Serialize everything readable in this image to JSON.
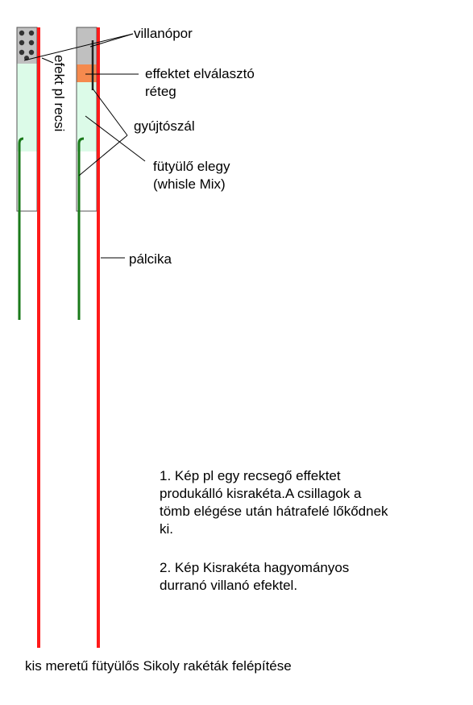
{
  "labels": {
    "villanopor": "villanópor",
    "separator_line1": "effektet elválasztó",
    "separator_line2": "réteg",
    "fuse": "gyújtószál",
    "mix_line1": "fütyülő elegy",
    "mix_line2": "(whisle Mix)",
    "stick": "pálcika",
    "vertical_effect": "efekt pl recsi"
  },
  "notes": {
    "note1": "1. Kép pl egy recsegő effektet\nprodukálló kisrakéta.A csillagok a\ntömb elégése után hátrafelé lőkődnek\nki.",
    "note2": "2. Kép Kisrakéta hagyományos\ndurranó villanó efektel."
  },
  "caption": "kis meretű fütyülős Sikoly rakéták felépítése",
  "colors": {
    "stick": "#ff1a1a",
    "fuse": "#1a7a1a",
    "whistle_mix": "#dcfbe8",
    "flash_powder": "#c0c0c0",
    "separator": "#f58a4e",
    "star": "#333333",
    "tube_outline": "#555555"
  }
}
